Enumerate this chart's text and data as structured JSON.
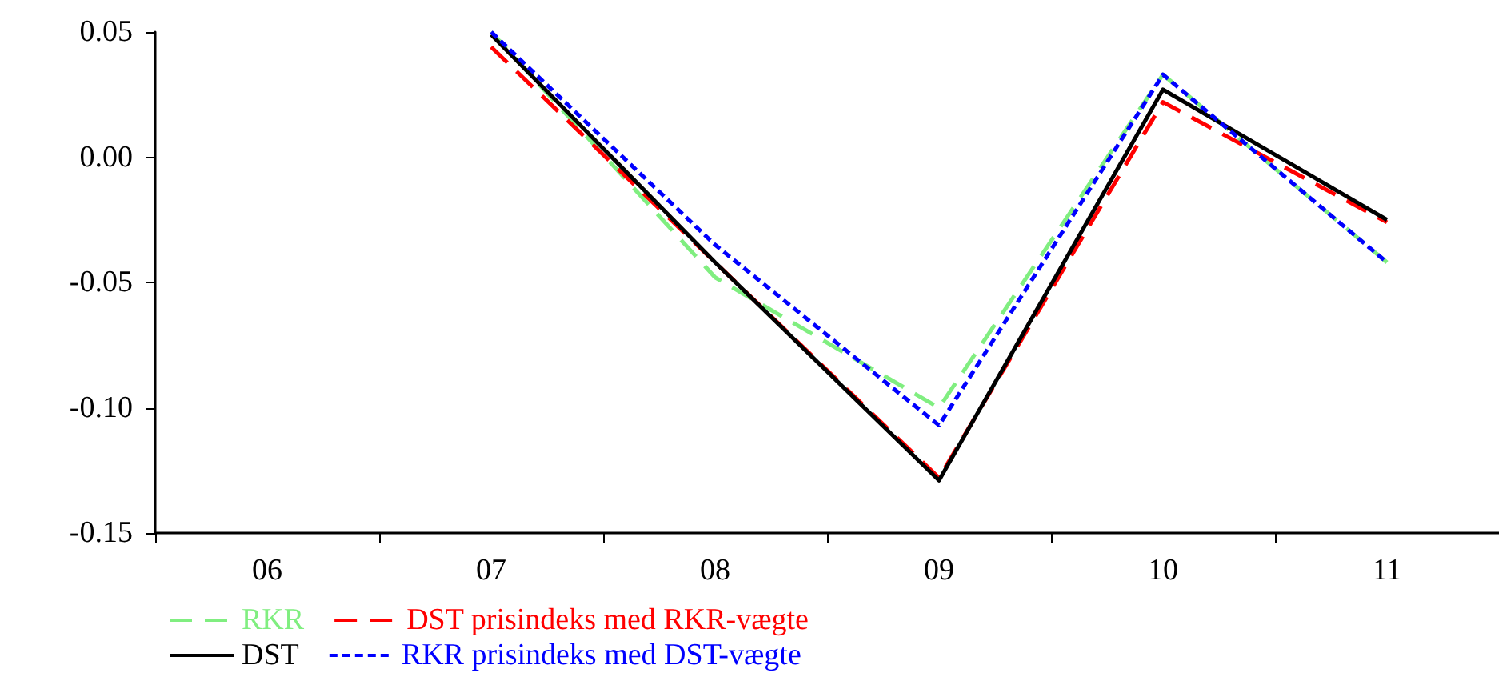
{
  "chart_data": {
    "type": "line",
    "categories": [
      "06",
      "07",
      "08",
      "09",
      "10",
      "11"
    ],
    "series": [
      {
        "name": "RKR",
        "color": "#80ee80",
        "line_style": "dashed",
        "values": [
          null,
          0.05,
          -0.048,
          -0.1,
          0.033,
          -0.042
        ]
      },
      {
        "name": "DST prisindeks med RKR-vægte",
        "color": "#ff0000",
        "line_style": "dashed",
        "values": [
          null,
          0.044,
          -0.042,
          -0.128,
          0.022,
          -0.026
        ]
      },
      {
        "name": "DST",
        "color": "#000000",
        "line_style": "solid",
        "values": [
          null,
          0.049,
          -0.042,
          -0.129,
          0.027,
          -0.025
        ]
      },
      {
        "name": "RKR prisindeks med DST-vægte",
        "color": "#0000ff",
        "line_style": "dotted",
        "values": [
          null,
          0.05,
          -0.035,
          -0.107,
          0.033,
          -0.042
        ]
      }
    ],
    "ylim": [
      -0.15,
      0.05
    ],
    "yticks": [
      {
        "value": -0.15,
        "label": "-0.15"
      },
      {
        "value": -0.1,
        "label": "-0.10"
      },
      {
        "value": -0.05,
        "label": "-0.05"
      },
      {
        "value": 0,
        "label": "0.00"
      },
      {
        "value": 0.05,
        "label": "0.05"
      }
    ],
    "grid": false,
    "legend": "bottom",
    "marker": "none"
  }
}
